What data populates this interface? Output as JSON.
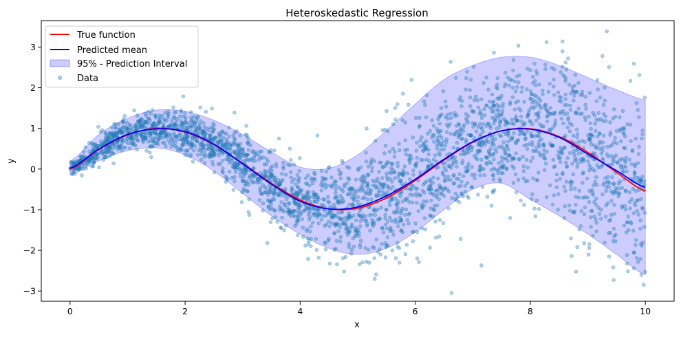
{
  "chart_data": {
    "type": "line",
    "title": "Heteroskedastic Regression",
    "xlabel": "x",
    "ylabel": "y",
    "xlim": [
      -0.5,
      10.5
    ],
    "ylim": [
      -3.25,
      3.65
    ],
    "xticks": [
      0,
      2,
      4,
      6,
      8,
      10
    ],
    "xtick_labels": [
      "0",
      "2",
      "4",
      "6",
      "8",
      "10"
    ],
    "yticks": [
      -3,
      -2,
      -1,
      0,
      1,
      2,
      3
    ],
    "ytick_labels": [
      "−3",
      "−2",
      "−1",
      "0",
      "1",
      "2",
      "3"
    ],
    "grid": false,
    "legend_position": "upper-left",
    "x": [
      0,
      0.5,
      1,
      1.5,
      2,
      2.5,
      3,
      3.5,
      4,
      4.5,
      5,
      5.5,
      6,
      6.5,
      7,
      7.5,
      8,
      8.5,
      9,
      9.5,
      10
    ],
    "series": [
      {
        "name": "True function",
        "kind": "line",
        "color": "#ff0000",
        "values": [
          0,
          0.48,
          0.84,
          1.0,
          0.91,
          0.6,
          0.14,
          -0.35,
          -0.76,
          -0.98,
          -0.96,
          -0.71,
          -0.28,
          0.22,
          0.66,
          0.94,
          0.99,
          0.8,
          0.41,
          -0.08,
          -0.54
        ]
      },
      {
        "name": "Predicted mean",
        "kind": "line",
        "color": "#0000ff",
        "values": [
          0.02,
          0.49,
          0.85,
          0.99,
          0.92,
          0.61,
          0.13,
          -0.37,
          -0.79,
          -0.98,
          -0.93,
          -0.66,
          -0.25,
          0.24,
          0.67,
          0.94,
          0.98,
          0.78,
          0.37,
          -0.04,
          -0.45
        ]
      },
      {
        "name": "95% - Prediction Interval",
        "kind": "band",
        "color": "#0000ff",
        "fill_opacity": 0.2,
        "lower": [
          -0.15,
          0.2,
          0.45,
          0.52,
          0.35,
          -0.05,
          -0.6,
          -1.15,
          -1.6,
          -1.95,
          -2.1,
          -1.95,
          -1.55,
          -1.0,
          -0.5,
          -0.35,
          -0.75,
          -1.15,
          -1.6,
          -2.1,
          -2.6
        ],
        "upper": [
          0.2,
          0.85,
          1.25,
          1.45,
          1.42,
          1.2,
          0.85,
          0.42,
          0.05,
          0.02,
          0.35,
          0.95,
          1.6,
          2.2,
          2.55,
          2.75,
          2.75,
          2.55,
          2.25,
          1.95,
          1.7
        ]
      },
      {
        "name": "Data",
        "kind": "scatter",
        "color": "#1f77b4",
        "alpha": 0.35,
        "count": 3000
      }
    ]
  }
}
